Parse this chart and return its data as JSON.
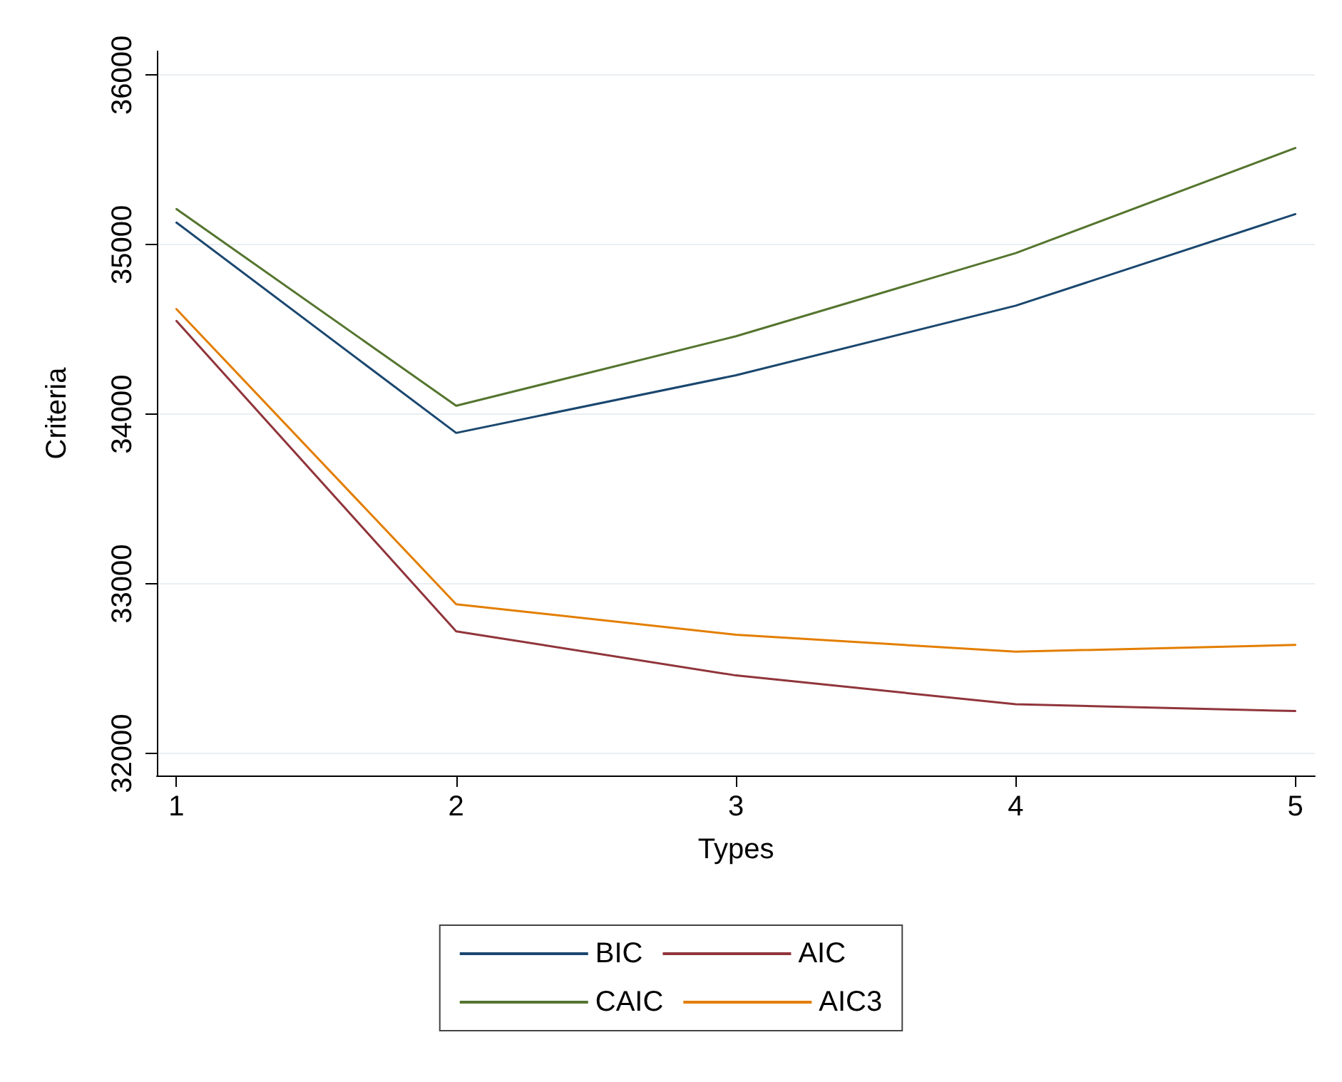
{
  "chart_data": {
    "type": "line",
    "xlabel": "Types",
    "ylabel": "Criteria",
    "x": [
      1,
      2,
      3,
      4,
      5
    ],
    "series": [
      {
        "name": "BIC",
        "color": "#1a476f",
        "values": [
          35130,
          33890,
          34230,
          34640,
          35180
        ]
      },
      {
        "name": "AIC",
        "color": "#90353b",
        "values": [
          34550,
          32720,
          32460,
          32290,
          32250
        ]
      },
      {
        "name": "CAIC",
        "color": "#55752f",
        "values": [
          35210,
          34050,
          34460,
          34950,
          35570
        ]
      },
      {
        "name": "AIC3",
        "color": "#e37e00",
        "values": [
          34620,
          32880,
          32700,
          32600,
          32640
        ]
      }
    ],
    "xlim": [
      0.93,
      5.07
    ],
    "xticks": [
      1,
      2,
      3,
      4,
      5
    ],
    "ylim": [
      31870,
      36140
    ],
    "yticks": [
      32000,
      33000,
      34000,
      35000,
      36000
    ],
    "grid": "y",
    "legend": "bottom",
    "marker": "none",
    "line_style": "solid"
  }
}
